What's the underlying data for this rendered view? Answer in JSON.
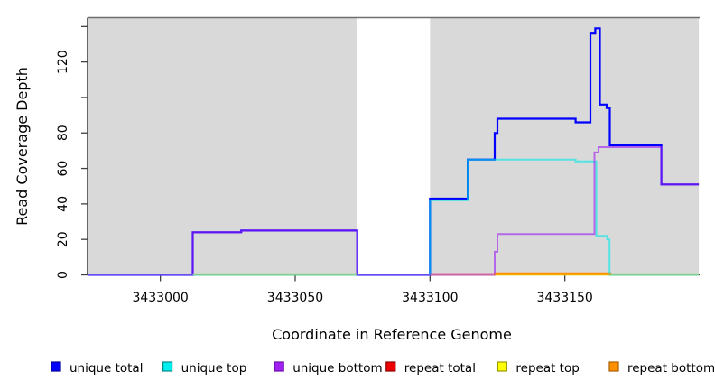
{
  "chart_data": {
    "type": "line",
    "style": "step",
    "title": "",
    "xlabel": "Coordinate in Reference Genome",
    "ylabel": "Read Coverage Depth",
    "xlim": [
      3432973,
      3433200
    ],
    "ylim": [
      0,
      145
    ],
    "grid": "off",
    "legend_position": "bottom",
    "plot_bg_color": "#d9d9d9",
    "highlight_band": {
      "from": 3433073,
      "to": 3433100,
      "color": "#ffffff"
    },
    "x_ticks": [
      {
        "value": 3433000,
        "label": "3433000"
      },
      {
        "value": 3433050,
        "label": "3433050"
      },
      {
        "value": 3433100,
        "label": "3433100"
      },
      {
        "value": 3433150,
        "label": "3433150"
      }
    ],
    "y_ticks": [
      {
        "value": 0,
        "label": "0"
      },
      {
        "value": 20,
        "label": "20"
      },
      {
        "value": 40,
        "label": "40"
      },
      {
        "value": 60,
        "label": "60"
      },
      {
        "value": 80,
        "label": "80"
      },
      {
        "value": 100,
        "label": ""
      },
      {
        "value": 120,
        "label": "120"
      },
      {
        "value": 140,
        "label": ""
      }
    ],
    "series": [
      {
        "name": "unique total",
        "color": "#0000ff",
        "points": [
          [
            3432973,
            0
          ],
          [
            3433012,
            24
          ],
          [
            3433030,
            25
          ],
          [
            3433073,
            0
          ],
          [
            3433100,
            43
          ],
          [
            3433114,
            65
          ],
          [
            3433124,
            80
          ],
          [
            3433125,
            88
          ],
          [
            3433154,
            86
          ],
          [
            3433159.5,
            136
          ],
          [
            3433161.3,
            139
          ],
          [
            3433163,
            96
          ],
          [
            3433165.5,
            94
          ],
          [
            3433166.7,
            73
          ],
          [
            3433185.8,
            51
          ],
          [
            3433199.7,
            51
          ]
        ]
      },
      {
        "name": "unique top",
        "color": "#00e8e8",
        "points": [
          [
            3432973,
            0
          ],
          [
            3433100,
            42
          ],
          [
            3433114,
            65
          ],
          [
            3433154,
            64
          ],
          [
            3433161.7,
            22
          ],
          [
            3433165.7,
            20
          ],
          [
            3433166.6,
            0
          ],
          [
            3433199.7,
            0
          ]
        ]
      },
      {
        "name": "unique bottom",
        "color": "#a020f0",
        "points": [
          [
            3432973,
            0
          ],
          [
            3433012,
            24
          ],
          [
            3433030,
            25
          ],
          [
            3433073,
            0
          ],
          [
            3433124,
            13
          ],
          [
            3433125,
            23
          ],
          [
            3433161,
            69
          ],
          [
            3433162.5,
            72
          ],
          [
            3433185.8,
            51
          ],
          [
            3433199.7,
            51
          ]
        ]
      },
      {
        "name": "repeat total",
        "color": "#e00000",
        "points": [
          [
            3432973,
            0
          ],
          [
            3433100,
            0.5
          ],
          [
            3433167,
            0
          ],
          [
            3433199.7,
            0
          ]
        ]
      },
      {
        "name": "repeat top",
        "color": "#ffff00",
        "points": [
          [
            3432973,
            0
          ],
          [
            3433199.7,
            0
          ]
        ]
      },
      {
        "name": "repeat bottom",
        "color": "#ff9100",
        "points": [
          [
            3432973,
            0
          ],
          [
            3433124,
            1
          ],
          [
            3433167,
            0
          ],
          [
            3433199.7,
            0
          ]
        ]
      }
    ],
    "zero_line_segments": [
      {
        "from": 3433012,
        "to": 3433073,
        "color": "#8fd48f"
      },
      {
        "from": 3433100,
        "to": 3433124,
        "color": "#cf6bae"
      },
      {
        "from": 3433124,
        "to": 3433167,
        "color": "#ff9100"
      },
      {
        "from": 3433167,
        "to": 3433199.7,
        "color": "#8fd48f"
      }
    ],
    "legend": [
      {
        "label": "unique total",
        "fill": "#0000ff",
        "border": "#00009a"
      },
      {
        "label": "unique top",
        "fill": "#00eeee",
        "border": "#008b8b"
      },
      {
        "label": "unique bottom",
        "fill": "#a020f0",
        "border": "#6a0dad"
      },
      {
        "label": "repeat total",
        "fill": "#ee0000",
        "border": "#8b0000"
      },
      {
        "label": "repeat top",
        "fill": "#ffff00",
        "border": "#9a9a00"
      },
      {
        "label": "repeat bottom",
        "fill": "#ff9100",
        "border": "#aa5f00"
      }
    ]
  }
}
